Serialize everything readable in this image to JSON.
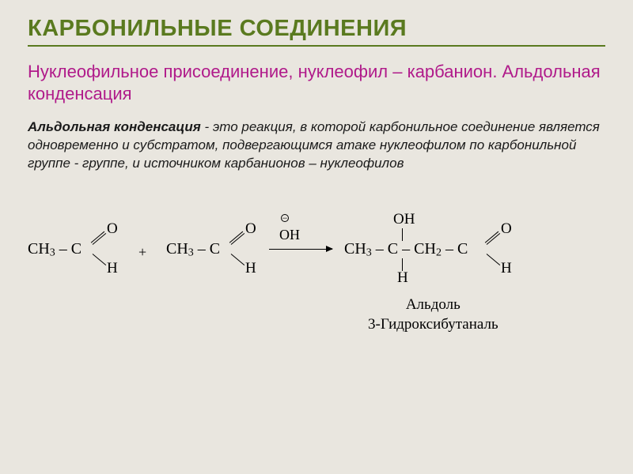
{
  "colors": {
    "background": "#e9e6df",
    "title": "#5a7a1f",
    "underline": "#5a7a1f",
    "subtitle": "#b01a8a",
    "body": "#1a1a1a",
    "reaction": "#000000"
  },
  "fonts": {
    "title_size": 29,
    "subtitle_size": 22,
    "body_size": 17,
    "formula_size": 20,
    "product_label_size": 19
  },
  "title": "КАРБОНИЛЬНЫЕ СОЕДИНЕНИЯ",
  "subtitle": "Нуклеофильное присоединение, нуклеофил – карбанион. Альдольная конденсация",
  "body": {
    "term": "Альдольная конденсация",
    "rest": " - это реакция, в которой карбонильное соединение является одновременно и субстратом, подвергающимся атаке нуклеофилом по карбонильной группе - группе, и источником карбанионов – нуклеофилов"
  },
  "reaction": {
    "reagent1": {
      "ch3_c": "CH",
      "sub1": "3",
      "dash": " – C",
      "O": "O",
      "H": "H"
    },
    "plus": "+",
    "reagent2": {
      "ch3_c": "CH",
      "sub1": "3",
      "dash": " – C",
      "O": "O",
      "H": "H"
    },
    "condition_neg": "⊖",
    "condition": "OH",
    "product": {
      "part1_a": "CH",
      "part1_sub": "3",
      "part1_dash": " – ",
      "c_center": "C",
      "part2_dash": " – ",
      "part2_a": "CH",
      "part2_sub": "2",
      "part2_dash2": " – C",
      "oh_top": "OH",
      "h_bot": "H",
      "O": "O",
      "H": "H"
    },
    "product_name_line1": "Альдоль",
    "product_name_line2": "3-Гидроксибутаналь"
  }
}
